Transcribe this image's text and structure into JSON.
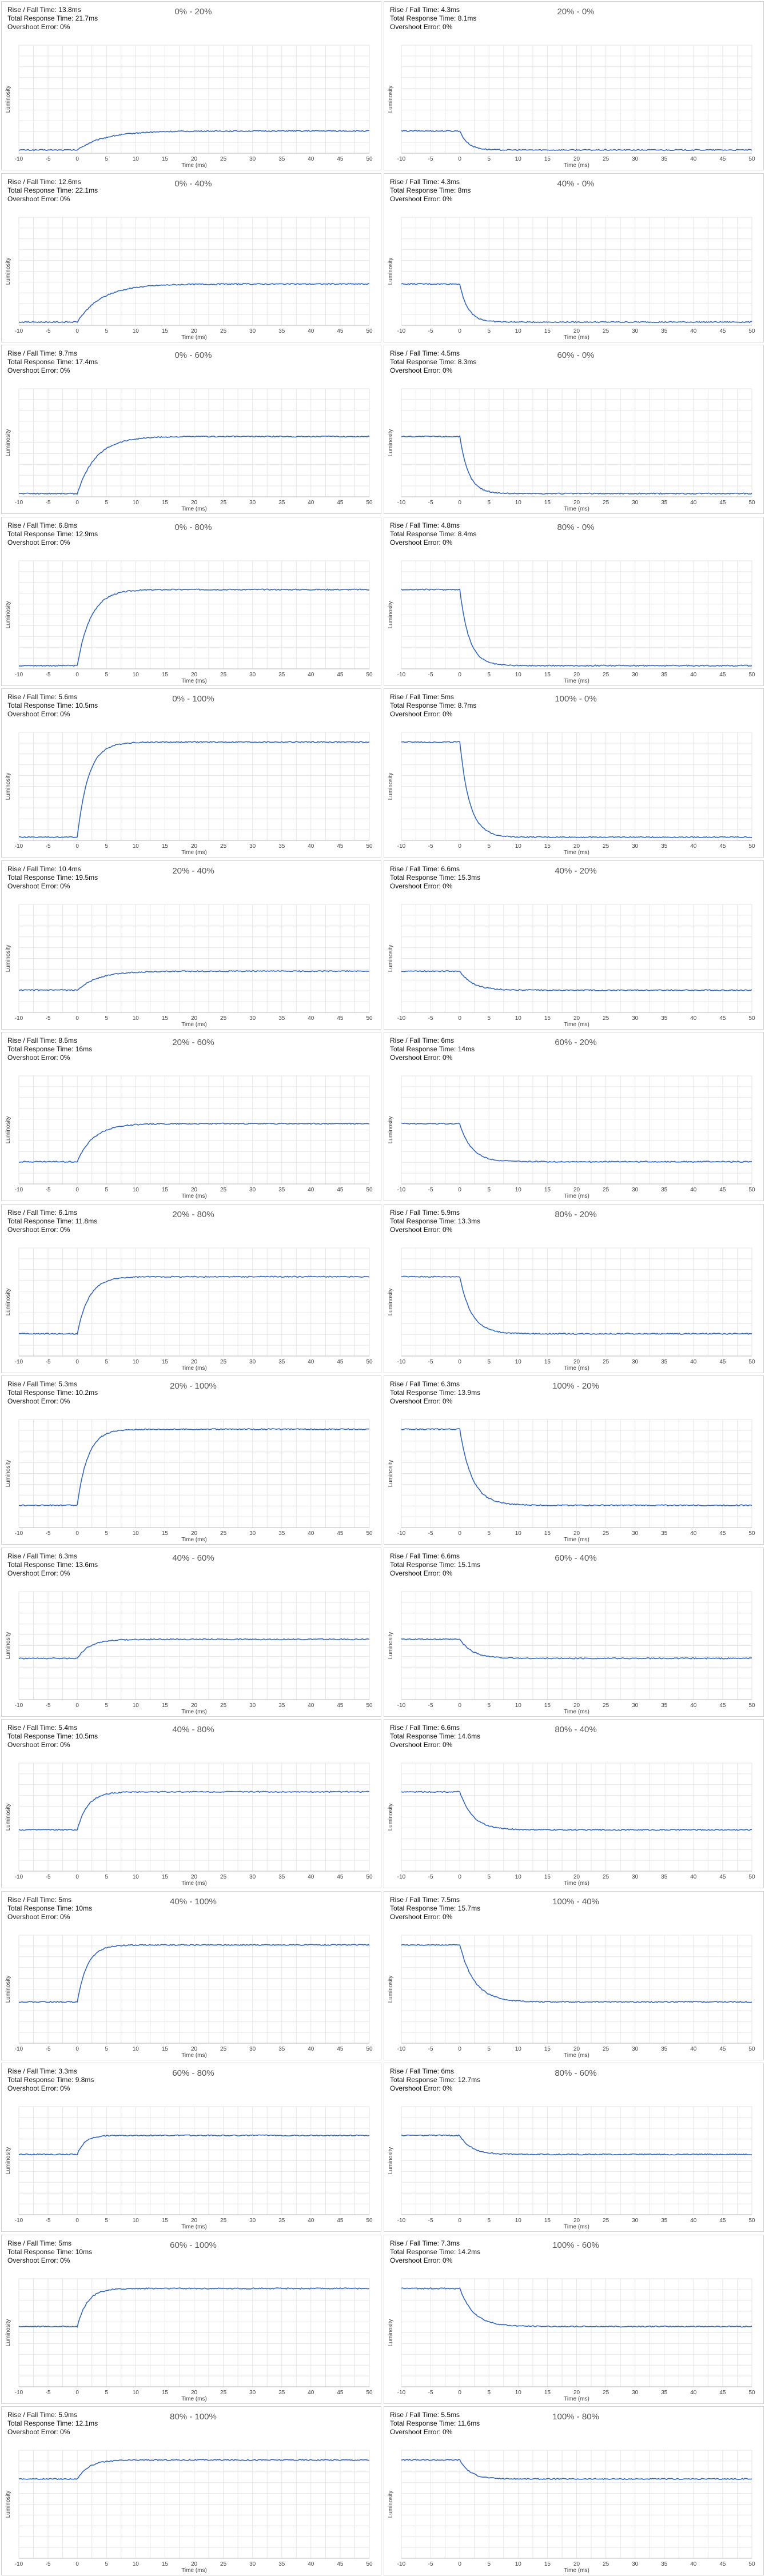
{
  "x_axis": {
    "label": "Time (ms)",
    "ticks": [
      -10,
      -5,
      0,
      5,
      10,
      15,
      20,
      25,
      30,
      35,
      40,
      45,
      50
    ],
    "range": [
      -10,
      50
    ]
  },
  "y_axis": {
    "label": "Luminosity"
  },
  "stat_labels": {
    "rise_fall": "Rise / Fall Time: ",
    "total": "Total Response Time: ",
    "overshoot": "Overshoot Error: "
  },
  "line_color": "#3366bb",
  "chart_data": [
    {
      "type": "line",
      "title": "0% - 20%",
      "direction": "rise",
      "rise_fall_time": "13.8ms",
      "total_response_time": "21.7ms",
      "overshoot_error": "0%",
      "start_level": 0.0,
      "end_level": 0.2,
      "time_constant_ms": 4.6,
      "xlabel": "Time (ms)",
      "ylabel": "Luminosity",
      "xlim": [
        -10,
        50
      ]
    },
    {
      "type": "line",
      "title": "20% - 0%",
      "direction": "fall",
      "rise_fall_time": "4.3ms",
      "total_response_time": "8.1ms",
      "overshoot_error": "0%",
      "start_level": 0.2,
      "end_level": 0.0,
      "time_constant_ms": 1.4,
      "xlabel": "Time (ms)",
      "ylabel": "Luminosity",
      "xlim": [
        -10,
        50
      ]
    },
    {
      "type": "line",
      "title": "0% - 40%",
      "direction": "rise",
      "rise_fall_time": "12.6ms",
      "total_response_time": "22.1ms",
      "overshoot_error": "0%",
      "start_level": 0.0,
      "end_level": 0.4,
      "time_constant_ms": 4.2,
      "xlabel": "Time (ms)",
      "ylabel": "Luminosity",
      "xlim": [
        -10,
        50
      ]
    },
    {
      "type": "line",
      "title": "40% - 0%",
      "direction": "fall",
      "rise_fall_time": "4.3ms",
      "total_response_time": "8ms",
      "overshoot_error": "0%",
      "start_level": 0.4,
      "end_level": 0.0,
      "time_constant_ms": 1.4,
      "xlabel": "Time (ms)",
      "ylabel": "Luminosity",
      "xlim": [
        -10,
        50
      ]
    },
    {
      "type": "line",
      "title": "0% - 60%",
      "direction": "rise",
      "rise_fall_time": "9.7ms",
      "total_response_time": "17.4ms",
      "overshoot_error": "0%",
      "start_level": 0.0,
      "end_level": 0.6,
      "time_constant_ms": 3.2,
      "xlabel": "Time (ms)",
      "ylabel": "Luminosity",
      "xlim": [
        -10,
        50
      ]
    },
    {
      "type": "line",
      "title": "60% - 0%",
      "direction": "fall",
      "rise_fall_time": "4.5ms",
      "total_response_time": "8.3ms",
      "overshoot_error": "0%",
      "start_level": 0.6,
      "end_level": 0.0,
      "time_constant_ms": 1.5,
      "xlabel": "Time (ms)",
      "ylabel": "Luminosity",
      "xlim": [
        -10,
        50
      ]
    },
    {
      "type": "line",
      "title": "0% - 80%",
      "direction": "rise",
      "rise_fall_time": "6.8ms",
      "total_response_time": "12.9ms",
      "overshoot_error": "0%",
      "start_level": 0.0,
      "end_level": 0.8,
      "time_constant_ms": 2.3,
      "xlabel": "Time (ms)",
      "ylabel": "Luminosity",
      "xlim": [
        -10,
        50
      ]
    },
    {
      "type": "line",
      "title": "80% - 0%",
      "direction": "fall",
      "rise_fall_time": "4.8ms",
      "total_response_time": "8.4ms",
      "overshoot_error": "0%",
      "start_level": 0.8,
      "end_level": 0.0,
      "time_constant_ms": 1.6,
      "xlabel": "Time (ms)",
      "ylabel": "Luminosity",
      "xlim": [
        -10,
        50
      ]
    },
    {
      "type": "line",
      "title": "0% - 100%",
      "direction": "rise",
      "rise_fall_time": "5.6ms",
      "total_response_time": "10.5ms",
      "overshoot_error": "0%",
      "start_level": 0.0,
      "end_level": 1.0,
      "time_constant_ms": 1.9,
      "xlabel": "Time (ms)",
      "ylabel": "Luminosity",
      "xlim": [
        -10,
        50
      ]
    },
    {
      "type": "line",
      "title": "100% - 0%",
      "direction": "fall",
      "rise_fall_time": "5ms",
      "total_response_time": "8.7ms",
      "overshoot_error": "0%",
      "start_level": 1.0,
      "end_level": 0.0,
      "time_constant_ms": 1.7,
      "xlabel": "Time (ms)",
      "ylabel": "Luminosity",
      "xlim": [
        -10,
        50
      ]
    },
    {
      "type": "line",
      "title": "20% - 40%",
      "direction": "rise",
      "rise_fall_time": "10.4ms",
      "total_response_time": "19.5ms",
      "overshoot_error": "0%",
      "start_level": 0.2,
      "end_level": 0.4,
      "time_constant_ms": 3.5,
      "xlabel": "Time (ms)",
      "ylabel": "Luminosity",
      "xlim": [
        -10,
        50
      ]
    },
    {
      "type": "line",
      "title": "40% - 20%",
      "direction": "fall",
      "rise_fall_time": "6.6ms",
      "total_response_time": "15.3ms",
      "overshoot_error": "0%",
      "start_level": 0.4,
      "end_level": 0.2,
      "time_constant_ms": 2.2,
      "xlabel": "Time (ms)",
      "ylabel": "Luminosity",
      "xlim": [
        -10,
        50
      ]
    },
    {
      "type": "line",
      "title": "20% - 60%",
      "direction": "rise",
      "rise_fall_time": "8.5ms",
      "total_response_time": "16ms",
      "overshoot_error": "0%",
      "start_level": 0.2,
      "end_level": 0.6,
      "time_constant_ms": 2.8,
      "xlabel": "Time (ms)",
      "ylabel": "Luminosity",
      "xlim": [
        -10,
        50
      ]
    },
    {
      "type": "line",
      "title": "60% - 20%",
      "direction": "fall",
      "rise_fall_time": "6ms",
      "total_response_time": "14ms",
      "overshoot_error": "0%",
      "start_level": 0.6,
      "end_level": 0.2,
      "time_constant_ms": 2.0,
      "xlabel": "Time (ms)",
      "ylabel": "Luminosity",
      "xlim": [
        -10,
        50
      ]
    },
    {
      "type": "line",
      "title": "20% - 80%",
      "direction": "rise",
      "rise_fall_time": "6.1ms",
      "total_response_time": "11.8ms",
      "overshoot_error": "0%",
      "start_level": 0.2,
      "end_level": 0.8,
      "time_constant_ms": 2.0,
      "xlabel": "Time (ms)",
      "ylabel": "Luminosity",
      "xlim": [
        -10,
        50
      ]
    },
    {
      "type": "line",
      "title": "80% - 20%",
      "direction": "fall",
      "rise_fall_time": "5.9ms",
      "total_response_time": "13.3ms",
      "overshoot_error": "0%",
      "start_level": 0.8,
      "end_level": 0.2,
      "time_constant_ms": 2.0,
      "xlabel": "Time (ms)",
      "ylabel": "Luminosity",
      "xlim": [
        -10,
        50
      ]
    },
    {
      "type": "line",
      "title": "20% - 100%",
      "direction": "rise",
      "rise_fall_time": "5.3ms",
      "total_response_time": "10.2ms",
      "overshoot_error": "0%",
      "start_level": 0.2,
      "end_level": 1.0,
      "time_constant_ms": 1.8,
      "xlabel": "Time (ms)",
      "ylabel": "Luminosity",
      "xlim": [
        -10,
        50
      ]
    },
    {
      "type": "line",
      "title": "100% - 20%",
      "direction": "fall",
      "rise_fall_time": "6.3ms",
      "total_response_time": "13.9ms",
      "overshoot_error": "0%",
      "start_level": 1.0,
      "end_level": 0.2,
      "time_constant_ms": 2.1,
      "xlabel": "Time (ms)",
      "ylabel": "Luminosity",
      "xlim": [
        -10,
        50
      ]
    },
    {
      "type": "line",
      "title": "40% - 60%",
      "direction": "rise",
      "rise_fall_time": "6.3ms",
      "total_response_time": "13.6ms",
      "overshoot_error": "0%",
      "start_level": 0.4,
      "end_level": 0.6,
      "time_constant_ms": 2.1,
      "xlabel": "Time (ms)",
      "ylabel": "Luminosity",
      "xlim": [
        -10,
        50
      ]
    },
    {
      "type": "line",
      "title": "60% - 40%",
      "direction": "fall",
      "rise_fall_time": "6.6ms",
      "total_response_time": "15.1ms",
      "overshoot_error": "0%",
      "start_level": 0.6,
      "end_level": 0.4,
      "time_constant_ms": 2.2,
      "xlabel": "Time (ms)",
      "ylabel": "Luminosity",
      "xlim": [
        -10,
        50
      ]
    },
    {
      "type": "line",
      "title": "40% - 80%",
      "direction": "rise",
      "rise_fall_time": "5.4ms",
      "total_response_time": "10.5ms",
      "overshoot_error": "0%",
      "start_level": 0.4,
      "end_level": 0.8,
      "time_constant_ms": 1.8,
      "xlabel": "Time (ms)",
      "ylabel": "Luminosity",
      "xlim": [
        -10,
        50
      ]
    },
    {
      "type": "line",
      "title": "80% - 40%",
      "direction": "fall",
      "rise_fall_time": "6.6ms",
      "total_response_time": "14.6ms",
      "overshoot_error": "0%",
      "start_level": 0.8,
      "end_level": 0.4,
      "time_constant_ms": 2.2,
      "xlabel": "Time (ms)",
      "ylabel": "Luminosity",
      "xlim": [
        -10,
        50
      ]
    },
    {
      "type": "line",
      "title": "40% - 100%",
      "direction": "rise",
      "rise_fall_time": "5ms",
      "total_response_time": "10ms",
      "overshoot_error": "0%",
      "start_level": 0.4,
      "end_level": 1.0,
      "time_constant_ms": 1.7,
      "xlabel": "Time (ms)",
      "ylabel": "Luminosity",
      "xlim": [
        -10,
        50
      ]
    },
    {
      "type": "line",
      "title": "100% - 40%",
      "direction": "fall",
      "rise_fall_time": "7.5ms",
      "total_response_time": "15.7ms",
      "overshoot_error": "0%",
      "start_level": 1.0,
      "end_level": 0.4,
      "time_constant_ms": 2.5,
      "xlabel": "Time (ms)",
      "ylabel": "Luminosity",
      "xlim": [
        -10,
        50
      ]
    },
    {
      "type": "line",
      "title": "60% - 80%",
      "direction": "rise",
      "rise_fall_time": "3.3ms",
      "total_response_time": "9.8ms",
      "overshoot_error": "0%",
      "start_level": 0.6,
      "end_level": 0.8,
      "time_constant_ms": 1.3,
      "xlabel": "Time (ms)",
      "ylabel": "Luminosity",
      "xlim": [
        -10,
        50
      ]
    },
    {
      "type": "line",
      "title": "80% - 60%",
      "direction": "fall",
      "rise_fall_time": "6ms",
      "total_response_time": "12.7ms",
      "overshoot_error": "0%",
      "start_level": 0.8,
      "end_level": 0.6,
      "time_constant_ms": 2.0,
      "xlabel": "Time (ms)",
      "ylabel": "Luminosity",
      "xlim": [
        -10,
        50
      ]
    },
    {
      "type": "line",
      "title": "60% - 100%",
      "direction": "rise",
      "rise_fall_time": "5ms",
      "total_response_time": "10ms",
      "overshoot_error": "0%",
      "start_level": 0.6,
      "end_level": 1.0,
      "time_constant_ms": 1.7,
      "xlabel": "Time (ms)",
      "ylabel": "Luminosity",
      "xlim": [
        -10,
        50
      ]
    },
    {
      "type": "line",
      "title": "100% - 60%",
      "direction": "fall",
      "rise_fall_time": "7.3ms",
      "total_response_time": "14.2ms",
      "overshoot_error": "0%",
      "start_level": 1.0,
      "end_level": 0.6,
      "time_constant_ms": 2.4,
      "xlabel": "Time (ms)",
      "ylabel": "Luminosity",
      "xlim": [
        -10,
        50
      ]
    },
    {
      "type": "line",
      "title": "80% - 100%",
      "direction": "rise",
      "rise_fall_time": "5.9ms",
      "total_response_time": "12.1ms",
      "overshoot_error": "0%",
      "start_level": 0.8,
      "end_level": 1.0,
      "time_constant_ms": 2.0,
      "xlabel": "Time (ms)",
      "ylabel": "Luminosity",
      "xlim": [
        -10,
        50
      ]
    },
    {
      "type": "line",
      "title": "100% - 80%",
      "direction": "fall",
      "rise_fall_time": "5.5ms",
      "total_response_time": "11.6ms",
      "overshoot_error": "0%",
      "start_level": 1.0,
      "end_level": 0.8,
      "time_constant_ms": 1.8,
      "xlabel": "Time (ms)",
      "ylabel": "Luminosity",
      "xlim": [
        -10,
        50
      ]
    }
  ]
}
